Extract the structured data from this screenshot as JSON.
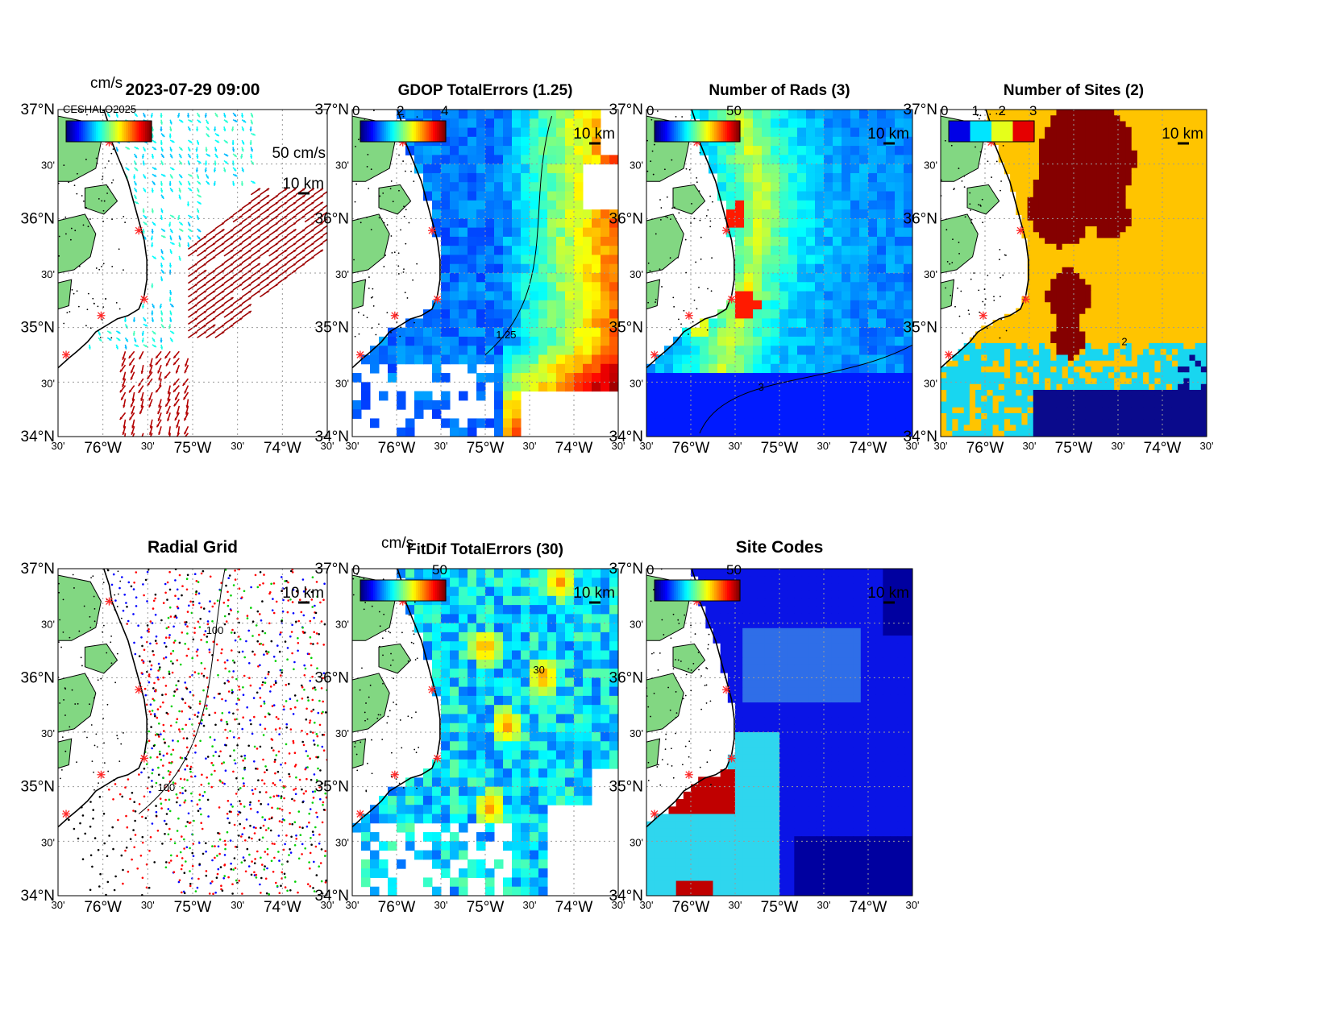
{
  "colors": {
    "land": "#82d782",
    "jet": [
      "#00008f",
      "#0000ff",
      "#007fff",
      "#00ffff",
      "#7fff7f",
      "#ffff00",
      "#ff7f00",
      "#ff0000",
      "#7f0000"
    ],
    "site_star": "#ff2a2a",
    "sites_map": [
      "#0a0a8c",
      "#18d6f0",
      "#ffc400",
      "#850000"
    ],
    "codes_map": [
      "#0000a0",
      "#0a14e6",
      "#2f6ee8",
      "#2fd6ee",
      "#c00000"
    ]
  },
  "axes": {
    "lat_labels": [
      "37°N",
      "30'",
      "36°N",
      "30'",
      "35°N",
      "30'",
      "34°N"
    ],
    "lon_labels": [
      "30'",
      "76°W",
      "30'",
      "75°W",
      "30'",
      "74°W",
      "30'"
    ]
  },
  "panels": [
    {
      "id": "currents",
      "title": "2023-07-29 09:00",
      "colorbar_unit": "cm/s",
      "colorbar_ticks": [],
      "overlay_text": "CESHALO2025",
      "vector_scale_label": "50 cm/s",
      "scale_label": "10 km"
    },
    {
      "id": "gdop",
      "title": "GDOP TotalErrors (1.25)",
      "colorbar_ticks": [
        "0",
        "2",
        "4"
      ],
      "contour_label": "1.25",
      "scale_label": "10 km"
    },
    {
      "id": "nrads",
      "title": "Number of Rads (3)",
      "colorbar_ticks": [
        "0",
        "50"
      ],
      "contour_label": "3",
      "scale_label": "10 km"
    },
    {
      "id": "nsites",
      "title": "Number of Sites (2)",
      "colorbar_ticks": [
        "0",
        "1",
        "2",
        "3"
      ],
      "contour_label": "2",
      "scale_label": "10 km"
    },
    {
      "id": "radgrid",
      "title": "Radial Grid",
      "colorbar_ticks": [],
      "contour_label": "100",
      "scale_label": "10 km"
    },
    {
      "id": "fitdif",
      "title": "FitDif TotalErrors (30)",
      "colorbar_unit": "cm/s",
      "colorbar_ticks": [
        "0",
        "50"
      ],
      "contour_label": "30",
      "scale_label": "10 km"
    },
    {
      "id": "codes",
      "title": "Site Codes",
      "colorbar_ticks": [
        "0",
        "50"
      ],
      "scale_label": "10 km"
    }
  ]
}
